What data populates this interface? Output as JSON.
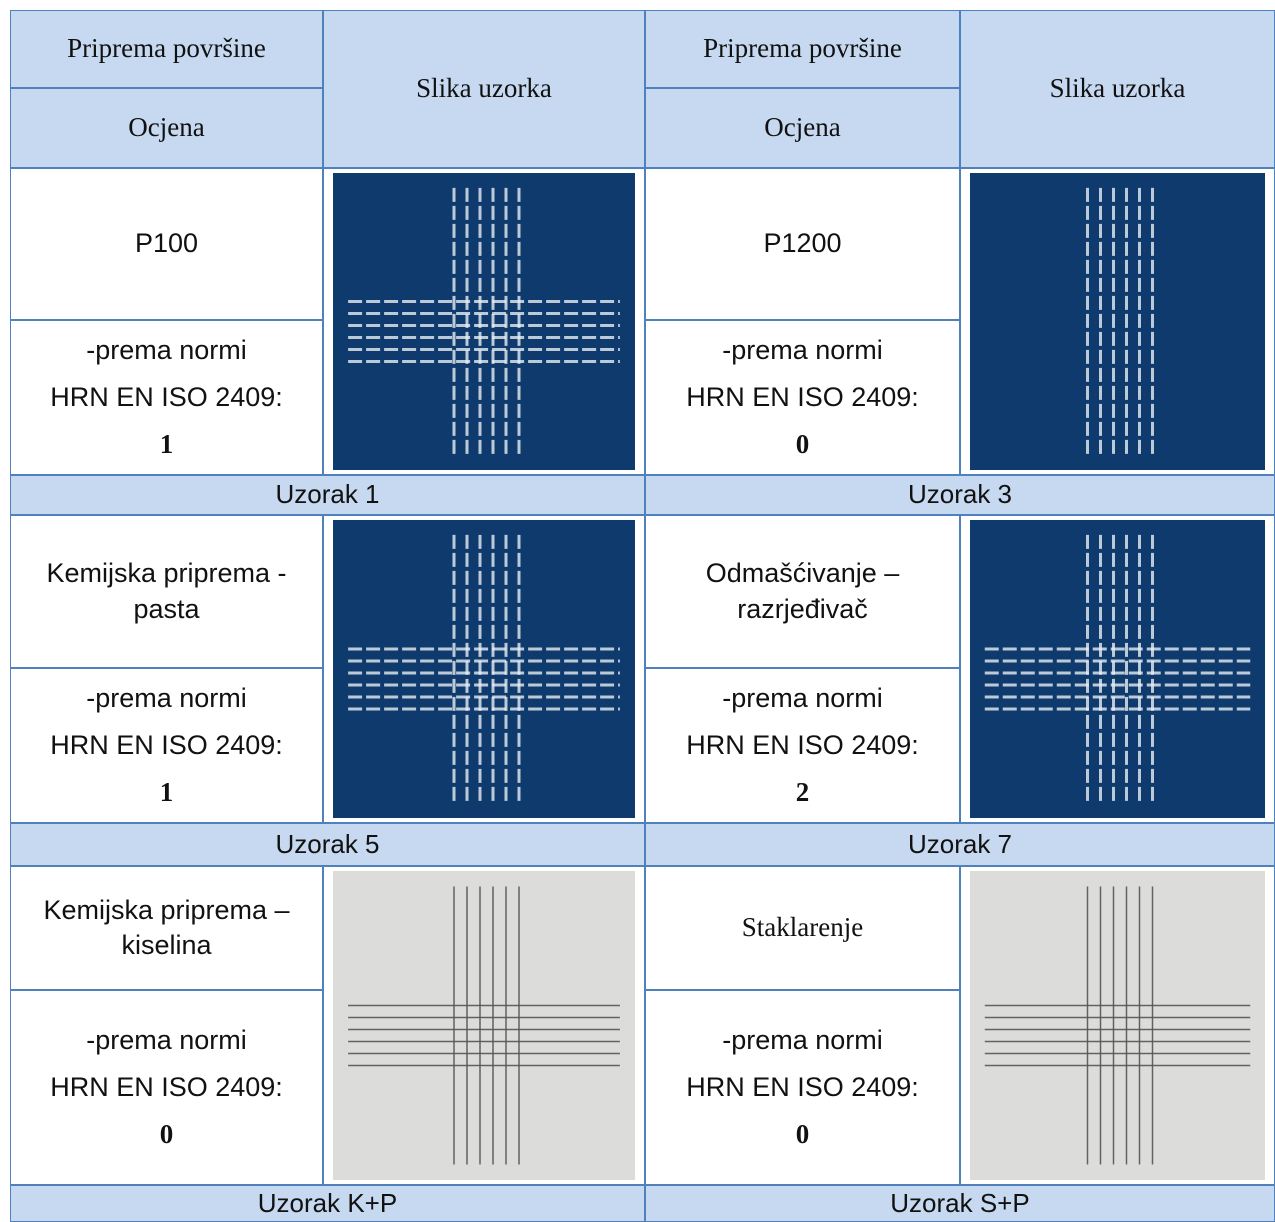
{
  "header": {
    "left": {
      "prep": "Priprema površine",
      "grade": "Ocjena",
      "image": "Slika uzorka"
    },
    "right": {
      "prep": "Priprema površine",
      "grade": "Ocjena",
      "image": "Slika uzorka"
    }
  },
  "rows": [
    {
      "samples": [
        {
          "prep": "P100",
          "norm_lines": [
            "-prema normi",
            "HRN EN ISO 2409:"
          ],
          "grade": "1",
          "caption": "Uzorak 1"
        },
        {
          "prep": "P1200",
          "norm_lines": [
            "-prema normi",
            "HRN EN ISO 2409:"
          ],
          "grade": "0",
          "caption": "Uzorak 3"
        }
      ]
    },
    {
      "samples": [
        {
          "prep": "Kemijska priprema - pasta",
          "norm_lines": [
            "-prema normi",
            "HRN EN ISO 2409:"
          ],
          "grade": "1",
          "caption": "Uzorak 5"
        },
        {
          "prep": "Odmašćivanje – razrjeđivač",
          "norm_lines": [
            "-prema normi",
            "HRN EN ISO 2409:"
          ],
          "grade": "2",
          "caption": "Uzorak 7"
        }
      ]
    },
    {
      "samples": [
        {
          "prep": "Kemijska priprema – kiselina",
          "norm_lines": [
            "-prema normi",
            "HRN EN ISO 2409:"
          ],
          "grade": "0",
          "caption": "Uzorak K+P"
        },
        {
          "prep": "Staklarenje",
          "norm_lines": [
            "-prema normi",
            "HRN EN ISO 2409:"
          ],
          "grade": "0",
          "caption": "Uzorak S+P"
        }
      ]
    }
  ]
}
